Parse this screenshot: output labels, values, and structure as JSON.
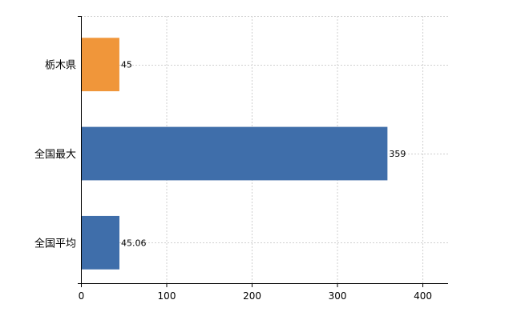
{
  "chart_data": {
    "type": "bar",
    "orientation": "horizontal",
    "categories": [
      "栃木県",
      "全国最大",
      "全国平均"
    ],
    "values": [
      45,
      359,
      45.06
    ],
    "value_labels": [
      "45",
      "359",
      "45.06"
    ],
    "bar_colors": [
      "#F0963A",
      "#3F6EAA",
      "#3F6EAA"
    ],
    "xlim": [
      0,
      430
    ],
    "xticks": [
      0,
      100,
      200,
      300,
      400
    ],
    "xtick_labels": [
      "0",
      "100",
      "200",
      "300",
      "400"
    ],
    "grid": true,
    "grid_style": "dashed",
    "title": "",
    "xlabel": "",
    "ylabel": ""
  }
}
